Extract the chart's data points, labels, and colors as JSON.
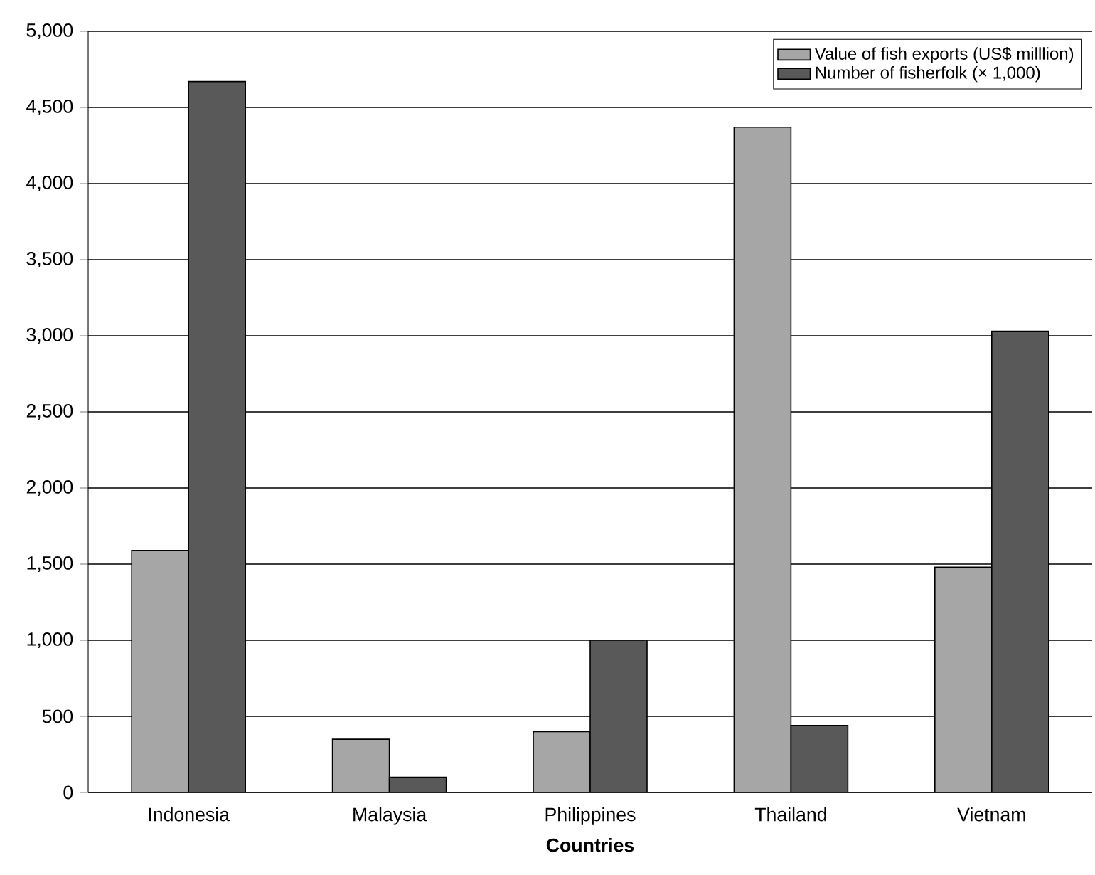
{
  "chart_data": {
    "type": "bar",
    "xlabel": "Countries",
    "categories": [
      "Indonesia",
      "Malaysia",
      "Philippines",
      "Thailand",
      "Vietnam"
    ],
    "series": [
      {
        "name": "Value of fish exports (US$ milllion)",
        "color": "#a6a6a6",
        "values": [
          1590,
          350,
          400,
          4370,
          1480
        ]
      },
      {
        "name": "Number of fisherfolk (× 1,000)",
        "color": "#595959",
        "values": [
          4670,
          100,
          1000,
          440,
          3030
        ]
      }
    ],
    "ylim": [
      0,
      5000
    ],
    "yticks": [
      {
        "value": 0,
        "label": "0"
      },
      {
        "value": 500,
        "label": "500"
      },
      {
        "value": 1000,
        "label": "1,000"
      },
      {
        "value": 1500,
        "label": "1,500"
      },
      {
        "value": 2000,
        "label": "2,000"
      },
      {
        "value": 2500,
        "label": "2,500"
      },
      {
        "value": 3000,
        "label": "3,000"
      },
      {
        "value": 3500,
        "label": "3,500"
      },
      {
        "value": 4000,
        "label": "4,000"
      },
      {
        "value": 4500,
        "label": "4,500"
      },
      {
        "value": 5000,
        "label": "5,000"
      }
    ],
    "grid": "y",
    "legend": "top right"
  }
}
